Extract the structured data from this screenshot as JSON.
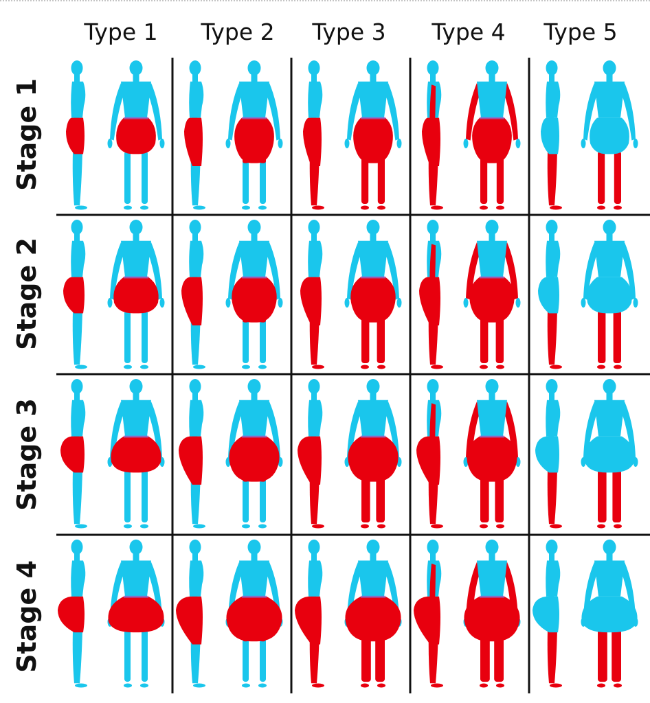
{
  "columns": [
    {
      "label": "Type 1",
      "affected": [
        "hips",
        "thighs"
      ]
    },
    {
      "label": "Type 2",
      "affected": [
        "hips",
        "thighs",
        "knees"
      ]
    },
    {
      "label": "Type 3",
      "affected": [
        "hips",
        "thighs",
        "knees",
        "calves"
      ]
    },
    {
      "label": "Type 4",
      "affected": [
        "hips",
        "thighs",
        "knees",
        "calves",
        "arms"
      ]
    },
    {
      "label": "Type 5",
      "affected": [
        "calves"
      ]
    }
  ],
  "rows": [
    {
      "label": "Stage 1",
      "severity": 1
    },
    {
      "label": "Stage 2",
      "severity": 2
    },
    {
      "label": "Stage 3",
      "severity": 3
    },
    {
      "label": "Stage 4",
      "severity": 4
    }
  ],
  "colors": {
    "body": "#1ac6ec",
    "affected": "#e8000e",
    "grid": "#111111",
    "background": "#ffffff"
  }
}
